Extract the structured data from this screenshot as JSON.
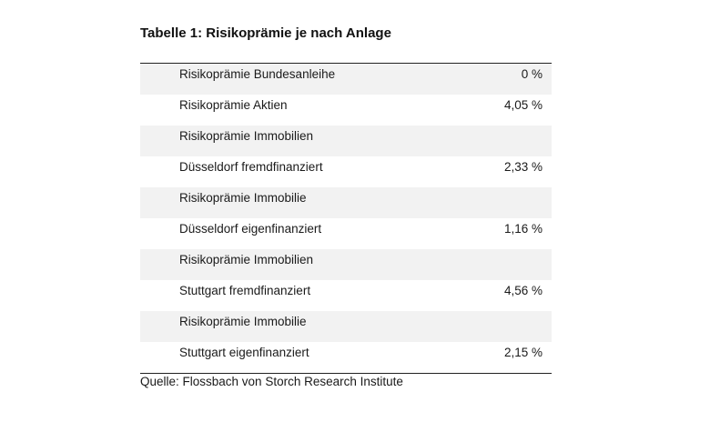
{
  "title": "Tabelle 1: Risikoprämie je nach Anlage",
  "rows": [
    {
      "label": "Risikoprämie Bundesanleihe",
      "value": "0 %"
    },
    {
      "label": "Risikoprämie Aktien",
      "value": "4,05 %"
    },
    {
      "label": "Risikoprämie Immobilien",
      "value": ""
    },
    {
      "label": "Düsseldorf fremdfinanziert",
      "value": "2,33 %"
    },
    {
      "label": "Risikoprämie Immobilie",
      "value": ""
    },
    {
      "label": "Düsseldorf eigenfinanziert",
      "value": "1,16 %"
    },
    {
      "label": "Risikoprämie Immobilien",
      "value": ""
    },
    {
      "label": "Stuttgart fremdfinanziert",
      "value": "4,56 %"
    },
    {
      "label": "Risikoprämie Immobilie",
      "value": ""
    },
    {
      "label": "Stuttgart eigenfinanziert",
      "value": "2,15 %"
    }
  ],
  "source": "Quelle: Flossbach von Storch Research Institute"
}
